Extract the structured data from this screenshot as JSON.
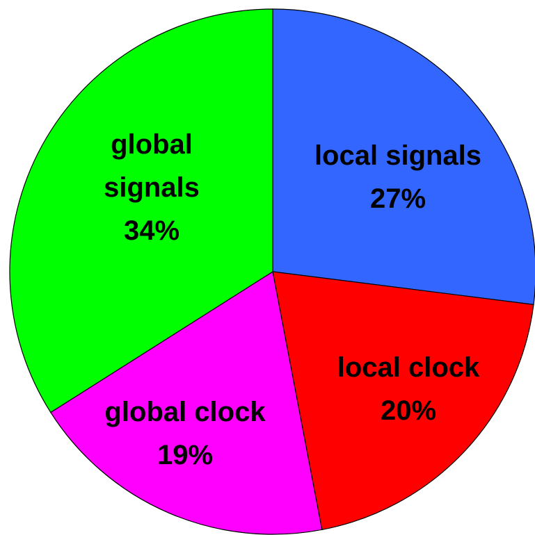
{
  "chart_data": {
    "type": "pie",
    "start": "12 o'clock",
    "direction": "clockwise",
    "slices": [
      {
        "name": "local signals",
        "label_lines": [
          "local signals",
          "27%"
        ],
        "value": 27,
        "color": "#3366ff"
      },
      {
        "name": "local clock",
        "label_lines": [
          "local clock",
          "20%"
        ],
        "value": 20,
        "color": "#ff0000"
      },
      {
        "name": "global clock",
        "label_lines": [
          "global clock",
          "19%"
        ],
        "value": 19,
        "color": "#ff00ff"
      },
      {
        "name": "global signals",
        "label_lines": [
          "global",
          "signals",
          "34%"
        ],
        "value": 34,
        "color": "#00ff00"
      }
    ]
  }
}
